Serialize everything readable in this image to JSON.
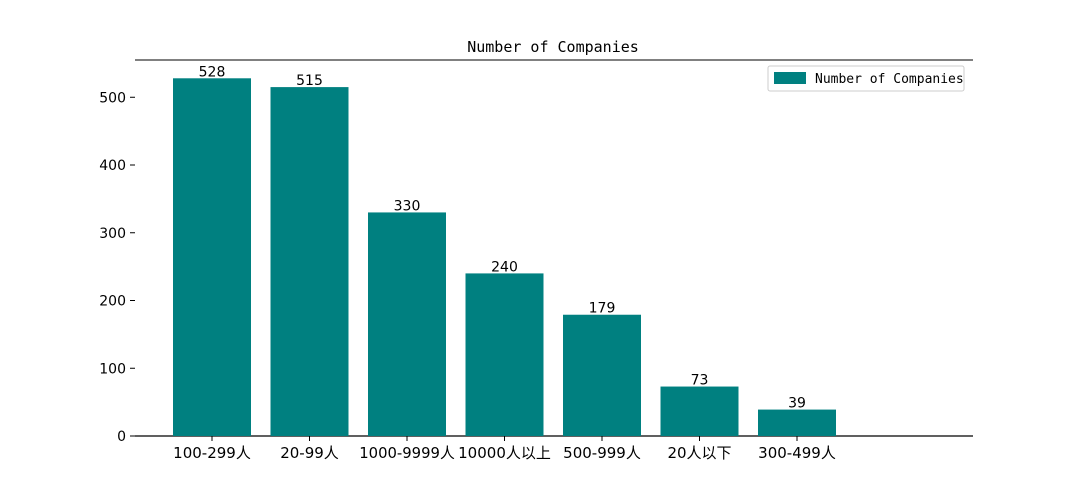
{
  "chart_data": {
    "type": "bar",
    "title": "Number of Companies",
    "xlabel": "",
    "ylabel": "",
    "categories": [
      "100-299人",
      "20-99人",
      "1000-9999人",
      "10000人以上",
      "500-999人",
      "20人以下",
      "300-499人"
    ],
    "series": [
      {
        "name": "Number of Companies",
        "values": [
          528,
          515,
          330,
          240,
          179,
          73,
          39
        ]
      }
    ],
    "y_ticks": [
      0,
      100,
      200,
      300,
      400,
      500
    ],
    "ylim": [
      0,
      555
    ],
    "legend": "top-right",
    "grid": false,
    "data_labels": true,
    "colors": {
      "bar": "#008080",
      "axis": "#000000"
    }
  }
}
